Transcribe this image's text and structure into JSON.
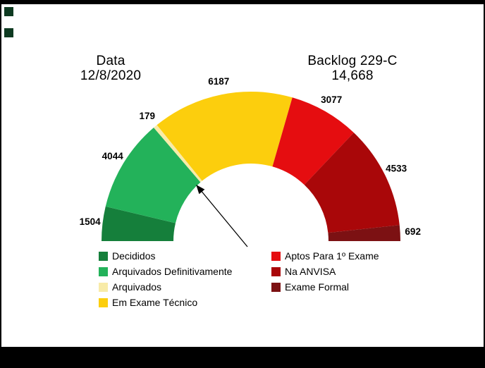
{
  "header": {
    "date_label": "Data",
    "date_value": "12/8/2020",
    "backlog_label": "Backlog 229-C",
    "backlog_value": "14,668"
  },
  "chart_data": {
    "type": "pie",
    "variant": "semicircle_donut_gauge",
    "title": "Backlog 229-C",
    "date": "12/8/2020",
    "total_label": "14,668",
    "legend_position": "bottom_two_columns",
    "segments": [
      {
        "label": "Decididos",
        "value": 1504,
        "color": "#157f3b"
      },
      {
        "label": "Arquivados Definitivamente",
        "value": 4044,
        "color": "#23b25a"
      },
      {
        "label": "Arquivados",
        "value": 179,
        "color": "#f8eba8"
      },
      {
        "label": "Em Exame Técnico",
        "value": 6187,
        "color": "#fcce0d"
      },
      {
        "label": "Aptos Para 1º Exame",
        "value": 3077,
        "color": "#e50d10"
      },
      {
        "label": "Na ANVISA",
        "value": 4533,
        "color": "#a90709"
      },
      {
        "label": "Exame Formal",
        "value": 692,
        "color": "#7c1113"
      }
    ],
    "annotation": {
      "type": "arrow",
      "points_to": "boundary between Arquivados and Em Exame Técnico (inner rim)"
    }
  },
  "decor": {
    "corner_square_color": "#0e3a21"
  }
}
